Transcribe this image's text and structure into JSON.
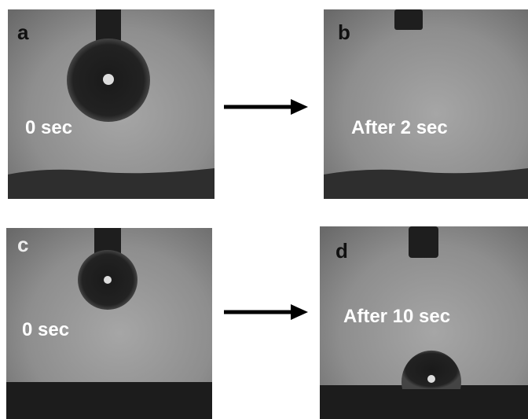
{
  "panels": [
    {
      "label": "a",
      "caption": "0 sec"
    },
    {
      "label": "b",
      "caption": "After 2 sec"
    },
    {
      "label": "c",
      "caption": "0 sec"
    },
    {
      "label": "d",
      "caption": "After 10 sec"
    }
  ]
}
